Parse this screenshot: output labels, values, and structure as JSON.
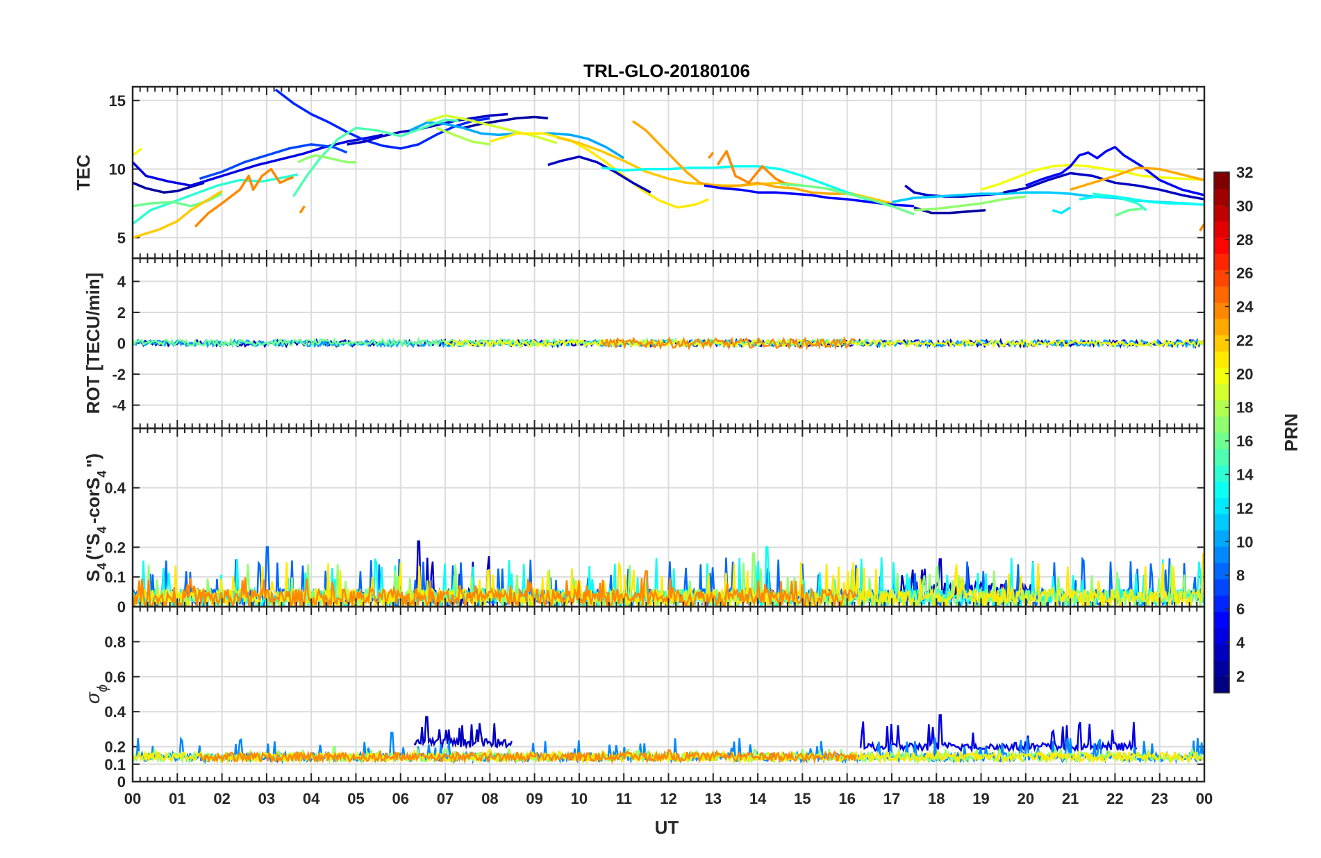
{
  "figure": {
    "title": "TRL-GLO-20180106",
    "xlabel": "UT",
    "x_ticks": [
      "00",
      "01",
      "02",
      "03",
      "04",
      "05",
      "06",
      "07",
      "08",
      "09",
      "10",
      "11",
      "12",
      "13",
      "14",
      "15",
      "16",
      "17",
      "18",
      "19",
      "20",
      "21",
      "22",
      "23",
      "00"
    ]
  },
  "panels": [
    {
      "id": "tec",
      "ylabel": "TEC",
      "ylim": [
        3.5,
        16
      ],
      "ticks": [
        5,
        10,
        15
      ],
      "tick_labels": [
        "5",
        "10",
        "15"
      ]
    },
    {
      "id": "rot",
      "ylabel": "ROT [TECU/min]",
      "ylim": [
        -5.5,
        5.5
      ],
      "ticks": [
        -4,
        -2,
        0,
        2,
        4
      ],
      "tick_labels": [
        "-4",
        "-2",
        "0",
        "2",
        "4"
      ]
    },
    {
      "id": "s4",
      "ylabel_parts": [
        "S",
        "4",
        "(\"S",
        "4",
        "-corS",
        "4",
        "\")"
      ],
      "ylim": [
        0,
        0.6
      ],
      "ticks": [
        0,
        0.1,
        0.2,
        0.4
      ],
      "tick_labels": [
        "0",
        "0.1",
        "0.2",
        "0.4"
      ]
    },
    {
      "id": "sigma",
      "ylabel_parts": [
        "σ",
        "ϕ"
      ],
      "ylim": [
        0,
        1
      ],
      "ticks": [
        0,
        0.1,
        0.2,
        0.4,
        0.6,
        0.8
      ],
      "tick_labels": [
        "0",
        "0.1",
        "0.2",
        "0.4",
        "0.6",
        "0.8"
      ]
    }
  ],
  "colorbar": {
    "label": "PRN",
    "range": [
      1,
      32
    ],
    "tick_values": [
      2,
      4,
      6,
      8,
      10,
      12,
      14,
      16,
      18,
      20,
      22,
      24,
      26,
      28,
      30,
      32
    ],
    "tick_labels": [
      "2",
      "4",
      "6",
      "8",
      "10",
      "12",
      "14",
      "16",
      "18",
      "20",
      "22",
      "24",
      "26",
      "28",
      "30",
      "32"
    ],
    "colormap": "jet"
  },
  "chart_data": {
    "type": "line",
    "title": "TRL-GLO-20180106",
    "xlabel": "UT",
    "x_range_hours": [
      0,
      24
    ],
    "tec_series": [
      {
        "prn": 2,
        "x": [
          0.0,
          0.3,
          0.7,
          1.0,
          1.3,
          1.6
        ],
        "y": [
          9.0,
          8.6,
          8.3,
          8.4,
          8.7,
          9.0
        ]
      },
      {
        "prn": 4,
        "x": [
          0.0,
          0.3,
          0.8,
          1.3,
          1.8,
          2.3,
          2.8,
          3.3,
          3.8,
          4.3,
          4.8,
          5.3,
          5.6
        ],
        "y": [
          10.5,
          9.5,
          9.1,
          8.8,
          9.3,
          9.8,
          10.3,
          10.7,
          11.1,
          11.6,
          12.0,
          12.3,
          12.5
        ]
      },
      {
        "prn": 7,
        "x": [
          1.5,
          2.0,
          2.5,
          3.0,
          3.5,
          4.0,
          4.5,
          4.8
        ],
        "y": [
          9.3,
          9.8,
          10.5,
          11.0,
          11.5,
          11.8,
          11.6,
          11.2
        ]
      },
      {
        "prn": 6,
        "x": [
          3.2,
          3.6,
          4.0,
          4.4,
          4.8,
          5.2,
          5.6,
          6.0,
          6.4,
          6.8,
          7.2,
          7.6,
          8.0
        ],
        "y": [
          15.8,
          14.8,
          14.0,
          13.4,
          12.7,
          12.1,
          11.7,
          11.5,
          11.8,
          12.5,
          13.1,
          13.5,
          13.7
        ]
      },
      {
        "prn": 3,
        "x": [
          4.8,
          5.2,
          5.6,
          6.0,
          6.4,
          6.8,
          7.2,
          7.6,
          8.0,
          8.4
        ],
        "y": [
          11.8,
          12.0,
          12.4,
          12.7,
          12.9,
          13.2,
          13.5,
          13.7,
          13.9,
          14.0
        ]
      },
      {
        "prn": 2,
        "x": [
          7.4,
          7.8,
          8.2,
          8.6,
          9.0,
          9.3
        ],
        "y": [
          13.0,
          13.3,
          13.5,
          13.7,
          13.8,
          13.7
        ]
      },
      {
        "prn": 10,
        "x": [
          6.2,
          6.6,
          7.0,
          7.4,
          7.8,
          8.2,
          8.6,
          9.0,
          9.4,
          9.8,
          10.2,
          10.6,
          11.0
        ],
        "y": [
          12.8,
          13.4,
          13.3,
          13.0,
          12.6,
          12.5,
          12.6,
          12.6,
          12.6,
          12.5,
          12.2,
          11.6,
          10.8
        ]
      },
      {
        "prn": 14,
        "x": [
          0.0,
          0.4,
          0.9,
          1.4,
          1.9,
          2.4,
          2.9,
          3.4,
          3.7
        ],
        "y": [
          6.0,
          7.0,
          7.6,
          8.2,
          8.8,
          9.2,
          9.1,
          9.4,
          9.6
        ]
      },
      {
        "prn": 16,
        "x": [
          0.0,
          0.4,
          0.9,
          1.3,
          1.7,
          2.0
        ],
        "y": [
          7.3,
          7.5,
          7.6,
          7.3,
          7.7,
          8.2
        ]
      },
      {
        "prn": 15,
        "x": [
          3.6,
          3.9,
          4.2,
          4.6,
          5.0,
          5.5,
          6.0,
          6.5,
          7.0,
          7.3
        ],
        "y": [
          8.0,
          9.5,
          10.8,
          12.2,
          13.0,
          12.8,
          12.4,
          13.0,
          13.6,
          13.5
        ]
      },
      {
        "prn": 17,
        "x": [
          3.7,
          3.9,
          4.1,
          4.4,
          4.8,
          5.0
        ],
        "y": [
          10.5,
          10.8,
          11.0,
          10.8,
          10.5,
          10.5
        ]
      },
      {
        "prn": 22,
        "x": [
          0.0,
          0.3,
          0.6,
          1.0,
          1.3,
          1.6,
          2.0
        ],
        "y": [
          5.0,
          5.3,
          5.6,
          6.2,
          7.0,
          7.6,
          8.4
        ]
      },
      {
        "prn": 24,
        "x": [
          1.4,
          1.7,
          2.0,
          2.4,
          2.6,
          2.7,
          2.9,
          3.1,
          3.3,
          3.5,
          3.6
        ],
        "y": [
          5.8,
          6.8,
          7.5,
          8.5,
          9.5,
          8.5,
          9.5,
          10.0,
          9.0,
          9.3,
          9.4
        ]
      },
      {
        "prn": 24,
        "x": [
          3.75,
          3.85
        ],
        "y": [
          6.8,
          7.3
        ]
      },
      {
        "prn": 20,
        "x": [
          0.0,
          0.2
        ],
        "y": [
          11.0,
          11.5
        ]
      },
      {
        "prn": 19,
        "x": [
          6.6,
          7.0,
          7.5,
          8.0,
          8.5,
          9.0,
          9.5
        ],
        "y": [
          13.5,
          13.9,
          13.6,
          13.2,
          12.8,
          12.4,
          11.9
        ]
      },
      {
        "prn": 18,
        "x": [
          6.8,
          7.2,
          7.6,
          8.0
        ],
        "y": [
          13.0,
          12.5,
          12.0,
          11.8
        ]
      },
      {
        "prn": 21,
        "x": [
          8.0,
          8.6,
          9.2,
          9.8,
          10.2,
          10.6,
          11.0,
          11.4,
          11.8,
          12.2,
          12.6,
          12.9
        ],
        "y": [
          12.0,
          12.6,
          12.6,
          12.1,
          11.4,
          10.5,
          9.5,
          8.5,
          7.7,
          7.2,
          7.4,
          7.8
        ]
      },
      {
        "prn": 22,
        "x": [
          9.5,
          10.0,
          10.5,
          11.0,
          11.5,
          12.0,
          12.4,
          12.8,
          13.2,
          13.6,
          14.0,
          14.5,
          15.0,
          15.5,
          16.0,
          16.5,
          17.0
        ],
        "y": [
          12.3,
          11.9,
          11.3,
          10.6,
          9.8,
          9.3,
          9.0,
          8.9,
          8.8,
          8.8,
          8.9,
          9.0,
          8.8,
          8.6,
          8.3,
          7.9,
          7.5
        ]
      },
      {
        "prn": 3,
        "x": [
          9.3,
          9.6,
          10.0,
          10.4,
          10.8,
          11.2,
          11.6
        ],
        "y": [
          10.3,
          10.6,
          10.9,
          10.5,
          9.8,
          9.0,
          8.3
        ]
      },
      {
        "prn": 13,
        "x": [
          10.5,
          11.0,
          11.5,
          12.0,
          12.5,
          13.0,
          13.5,
          14.0,
          14.5,
          15.0,
          15.5,
          16.0,
          16.5,
          17.0
        ],
        "y": [
          10.1,
          9.9,
          10.0,
          10.0,
          10.1,
          10.1,
          10.2,
          10.2,
          10.0,
          9.5,
          8.9,
          8.3,
          7.7,
          7.3
        ]
      },
      {
        "prn": 23,
        "x": [
          11.2,
          11.5,
          11.8,
          12.1,
          12.4,
          12.7,
          13.0,
          13.3,
          13.6,
          14.0,
          14.4,
          14.8,
          15.2,
          15.6,
          16.0
        ],
        "y": [
          13.5,
          12.8,
          11.8,
          10.8,
          9.8,
          9.0,
          8.8,
          8.7,
          8.8,
          9.0,
          8.7,
          8.6,
          8.3,
          8.2,
          8.2
        ]
      },
      {
        "prn": 24,
        "x": [
          12.9,
          13.0
        ],
        "y": [
          10.8,
          11.2
        ]
      },
      {
        "prn": 24,
        "x": [
          13.1,
          13.3,
          13.5,
          13.8,
          14.1,
          14.4,
          14.7
        ],
        "y": [
          10.3,
          11.3,
          9.5,
          9.0,
          10.2,
          9.3,
          8.8
        ]
      },
      {
        "prn": 5,
        "x": [
          12.8,
          13.2,
          13.6,
          14.0,
          14.4,
          14.8,
          15.2,
          15.6,
          16.0,
          16.5,
          17.0,
          17.5
        ],
        "y": [
          8.8,
          8.6,
          8.5,
          8.3,
          8.3,
          8.2,
          8.1,
          7.9,
          7.8,
          7.6,
          7.4,
          7.3
        ]
      },
      {
        "prn": 16,
        "x": [
          14.5,
          15.0,
          15.5,
          16.0,
          16.5,
          17.0,
          17.5
        ],
        "y": [
          8.9,
          8.8,
          8.6,
          8.2,
          7.8,
          7.3,
          6.7
        ]
      },
      {
        "prn": 3,
        "x": [
          17.3,
          17.5,
          17.8,
          18.2,
          18.6,
          19.0,
          19.4,
          19.8
        ],
        "y": [
          8.8,
          8.3,
          8.1,
          8.0,
          8.0,
          8.1,
          8.2,
          8.3
        ]
      },
      {
        "prn": 2,
        "x": [
          17.5,
          17.9,
          18.3,
          18.7,
          19.1
        ],
        "y": [
          7.2,
          6.8,
          6.8,
          6.9,
          7.0
        ]
      },
      {
        "prn": 11,
        "x": [
          17.0,
          17.5,
          18.0,
          18.5,
          19.0,
          19.5,
          20.0,
          20.5,
          21.0,
          21.5,
          22.0,
          22.5,
          23.0,
          23.5,
          24.0
        ],
        "y": [
          7.6,
          7.9,
          8.0,
          8.1,
          8.2,
          8.2,
          8.3,
          8.3,
          8.2,
          8.0,
          7.9,
          7.7,
          7.6,
          7.5,
          7.4
        ]
      },
      {
        "prn": 17,
        "x": [
          17.5,
          18.0,
          18.5,
          19.0,
          19.5,
          20.0
        ],
        "y": [
          7.0,
          7.1,
          7.3,
          7.5,
          7.8,
          8.0
        ]
      },
      {
        "prn": 20,
        "x": [
          19.0,
          19.4,
          19.8,
          20.2,
          20.6,
          21.0,
          21.4,
          21.8,
          22.2,
          22.6,
          23.0,
          23.5,
          24.0
        ],
        "y": [
          8.5,
          8.9,
          9.4,
          9.9,
          10.2,
          10.3,
          10.2,
          10.0,
          9.8,
          9.5,
          9.4,
          9.3,
          9.2
        ]
      },
      {
        "prn": 5,
        "x": [
          20.0,
          20.4,
          20.8,
          21.0,
          21.2,
          21.4,
          21.6,
          21.8,
          22.0,
          22.2,
          22.6,
          23.0,
          23.5,
          24.0
        ],
        "y": [
          8.8,
          9.3,
          9.7,
          10.2,
          11.0,
          11.2,
          10.8,
          11.3,
          11.6,
          11.0,
          10.2,
          9.2,
          8.5,
          8.1
        ]
      },
      {
        "prn": 3,
        "x": [
          19.5,
          20.0,
          20.5,
          21.0,
          21.5,
          22.0,
          22.5,
          23.0,
          23.5,
          24.0
        ],
        "y": [
          8.3,
          8.6,
          9.2,
          9.7,
          9.5,
          9.0,
          8.8,
          8.5,
          8.1,
          7.8
        ]
      },
      {
        "prn": 23,
        "x": [
          21.0,
          21.5,
          22.0,
          22.5,
          23.0,
          23.5,
          24.0
        ],
        "y": [
          8.5,
          9.0,
          9.5,
          10.1,
          10.0,
          9.6,
          9.2
        ]
      },
      {
        "prn": 14,
        "x": [
          21.5,
          22.0,
          22.5,
          22.7
        ],
        "y": [
          8.2,
          8.0,
          7.5,
          7.0
        ]
      },
      {
        "prn": 16,
        "x": [
          22.0,
          22.3,
          22.6
        ],
        "y": [
          6.6,
          7.0,
          7.1
        ]
      },
      {
        "prn": 13,
        "x": [
          21.2,
          21.6,
          22.0,
          22.4,
          22.8,
          23.2,
          23.6,
          24.0
        ],
        "y": [
          7.8,
          8.0,
          8.0,
          7.8,
          7.6,
          7.5,
          7.5,
          7.4
        ]
      },
      {
        "prn": 24,
        "x": [
          23.9,
          24.0
        ],
        "y": [
          5.5,
          6.0
        ]
      },
      {
        "prn": 12,
        "x": [
          20.6,
          20.8,
          21.0
        ],
        "y": [
          7.0,
          6.8,
          7.2
        ]
      }
    ],
    "rot_series": [
      {
        "prn": 3,
        "x_range": [
          0,
          24
        ],
        "baseline": 0.0,
        "amplitude": 0.2
      },
      {
        "prn": 10,
        "x_range": [
          0,
          24
        ],
        "baseline": 0.0,
        "amplitude": 0.2
      },
      {
        "prn": 16,
        "x_range": [
          0,
          16.5
        ],
        "baseline": 0.05,
        "amplitude": 0.2
      },
      {
        "prn": 20,
        "x_range": [
          7,
          24
        ],
        "baseline": 0.0,
        "amplitude": 0.2
      },
      {
        "prn": 24,
        "x_range": [
          10.5,
          16.2
        ],
        "baseline": 0.0,
        "amplitude": 0.3
      }
    ],
    "s4_series": [
      {
        "prn": 3,
        "x_range": [
          6.3,
          8.2
        ],
        "baseline": 0.03,
        "max": 0.22,
        "peak_at": 6.4
      },
      {
        "prn": 3,
        "x_range": [
          17.2,
          20.2
        ],
        "baseline": 0.05,
        "max": 0.16,
        "peak_at": 18.1
      },
      {
        "prn": 8,
        "x_range": [
          0,
          24
        ],
        "baseline": 0.03,
        "max": 0.2,
        "peak_at": 3.0
      },
      {
        "prn": 13,
        "x_range": [
          0,
          24
        ],
        "baseline": 0.03,
        "max": 0.2,
        "peak_at": 14.2
      },
      {
        "prn": 17,
        "x_range": [
          0,
          24
        ],
        "baseline": 0.03,
        "max": 0.18,
        "peak_at": 13.9
      },
      {
        "prn": 21,
        "x_range": [
          0,
          24
        ],
        "baseline": 0.03,
        "max": 0.18,
        "peak_at": 24.0
      },
      {
        "prn": 24,
        "x_range": [
          0,
          16.2
        ],
        "baseline": 0.03,
        "max": 0.12,
        "peak_at": 11.5
      }
    ],
    "sigma_series": [
      {
        "prn": 3,
        "x_range": [
          6.3,
          8.5
        ],
        "baseline": 0.22,
        "max": 0.37,
        "peak_at": 6.6
      },
      {
        "prn": 4,
        "x_range": [
          16.3,
          22.5
        ],
        "baseline": 0.2,
        "max": 0.38,
        "peak_at": 18.1
      },
      {
        "prn": 9,
        "x_range": [
          0,
          24
        ],
        "baseline": 0.14,
        "max": 0.28,
        "peak_at": 5.8
      },
      {
        "prn": 17,
        "x_range": [
          0,
          24
        ],
        "baseline": 0.14,
        "max": 0.2,
        "peak_at": 4.5
      },
      {
        "prn": 21,
        "x_range": [
          0,
          24
        ],
        "baseline": 0.14,
        "max": 0.18,
        "peak_at": 8.0
      },
      {
        "prn": 24,
        "x_range": [
          1.5,
          16.2
        ],
        "baseline": 0.14,
        "max": 0.18,
        "peak_at": 12.0
      }
    ]
  }
}
